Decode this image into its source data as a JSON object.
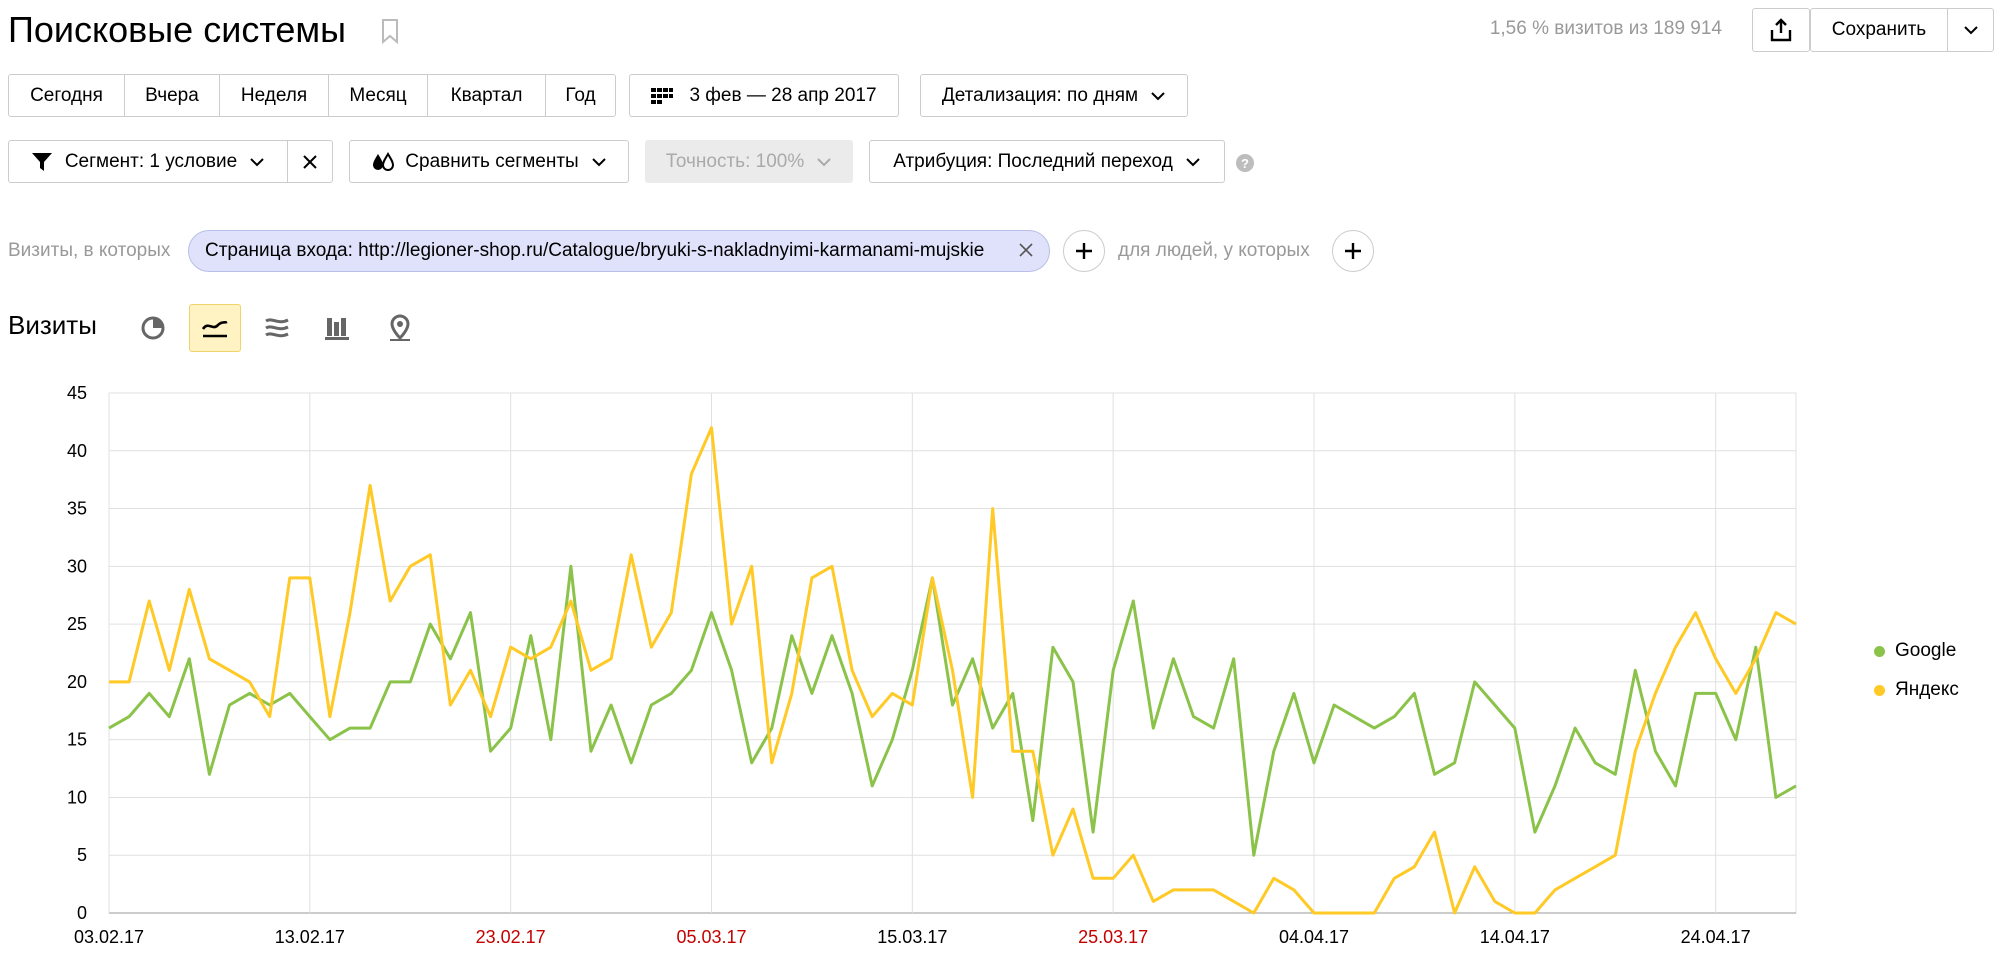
{
  "header": {
    "title": "Поисковые системы",
    "visits_info": "1,56 % визитов из 189 914",
    "save_label": "Сохранить"
  },
  "period_tabs": [
    "Сегодня",
    "Вчера",
    "Неделя",
    "Месяц",
    "Квартал",
    "Год"
  ],
  "date_range": "3 фев — 28 апр 2017",
  "detail": "Детализация: по дням",
  "segment": {
    "label": "Сегмент: 1 условие",
    "compare": "Сравнить сегменты",
    "accuracy": "Точность: 100%",
    "attribution": "Атрибуция: Последний переход",
    "help": "?"
  },
  "conditions": {
    "visits_label": "Визиты, в которых",
    "chip": "Страница входа: http://legioner-shop.ru/Catalogue/bryuki-s-nakladnyimi-karmanami-mujskie",
    "people_label": "для людей, у которых"
  },
  "section_title": "Визиты",
  "icons": [
    "bookmark-icon",
    "share-icon",
    "chevron-down-icon",
    "calendar-icon",
    "filter-icon",
    "close-icon",
    "compare-icon",
    "plus-icon",
    "pie-chart-icon",
    "line-chart-icon",
    "area-chart-icon",
    "bar-chart-icon",
    "map-icon"
  ],
  "colors": {
    "google": "#8bc34a",
    "yandex": "#ffc926",
    "weekend_tick": "#c40000",
    "active_view": "#fff3c4"
  },
  "chart_data": {
    "type": "line",
    "ylim": [
      0,
      45
    ],
    "yticks": [
      "0",
      "5",
      "10",
      "15",
      "20",
      "25",
      "30",
      "35",
      "40",
      "45"
    ],
    "xticks": [
      {
        "label": "03.02.17",
        "index": 0,
        "weekend": false
      },
      {
        "label": "13.02.17",
        "index": 10,
        "weekend": false
      },
      {
        "label": "23.02.17",
        "index": 20,
        "weekend": true
      },
      {
        "label": "05.03.17",
        "index": 30,
        "weekend": true
      },
      {
        "label": "15.03.17",
        "index": 40,
        "weekend": false
      },
      {
        "label": "25.03.17",
        "index": 50,
        "weekend": true
      },
      {
        "label": "04.04.17",
        "index": 60,
        "weekend": false
      },
      {
        "label": "14.04.17",
        "index": 70,
        "weekend": false
      },
      {
        "label": "24.04.17",
        "index": 80,
        "weekend": false
      }
    ],
    "x_start": "03.02.17",
    "x_end": "28.04.17",
    "legend_position": "right",
    "series": [
      {
        "name": "Google",
        "color": "#8bc34a",
        "values": [
          16,
          17,
          19,
          17,
          22,
          12,
          18,
          19,
          18,
          19,
          17,
          15,
          16,
          16,
          20,
          20,
          25,
          22,
          26,
          14,
          16,
          24,
          15,
          30,
          14,
          18,
          13,
          18,
          19,
          21,
          26,
          21,
          13,
          16,
          24,
          19,
          24,
          19,
          11,
          15,
          21,
          29,
          18,
          22,
          16,
          19,
          8,
          23,
          20,
          7,
          21,
          27,
          16,
          22,
          17,
          16,
          22,
          5,
          14,
          19,
          13,
          18,
          17,
          16,
          17,
          19,
          12,
          13,
          20,
          18,
          16,
          7,
          11,
          16,
          13,
          12,
          21,
          14,
          11,
          19,
          19,
          15,
          23,
          10,
          11
        ]
      },
      {
        "name": "Яндекс",
        "color": "#ffc926",
        "values": [
          20,
          20,
          27,
          21,
          28,
          22,
          21,
          20,
          17,
          29,
          29,
          17,
          26,
          37,
          27,
          30,
          31,
          18,
          21,
          17,
          23,
          22,
          23,
          27,
          21,
          22,
          31,
          23,
          26,
          38,
          42,
          25,
          30,
          13,
          19,
          29,
          30,
          21,
          17,
          19,
          18,
          29,
          21,
          10,
          35,
          14,
          14,
          5,
          9,
          3,
          3,
          5,
          1,
          2,
          2,
          2,
          1,
          0,
          3,
          2,
          0,
          0,
          0,
          0,
          3,
          4,
          7,
          0,
          4,
          1,
          0,
          0,
          2,
          3,
          4,
          5,
          14,
          19,
          23,
          26,
          22,
          19,
          22,
          26,
          25
        ]
      }
    ]
  }
}
